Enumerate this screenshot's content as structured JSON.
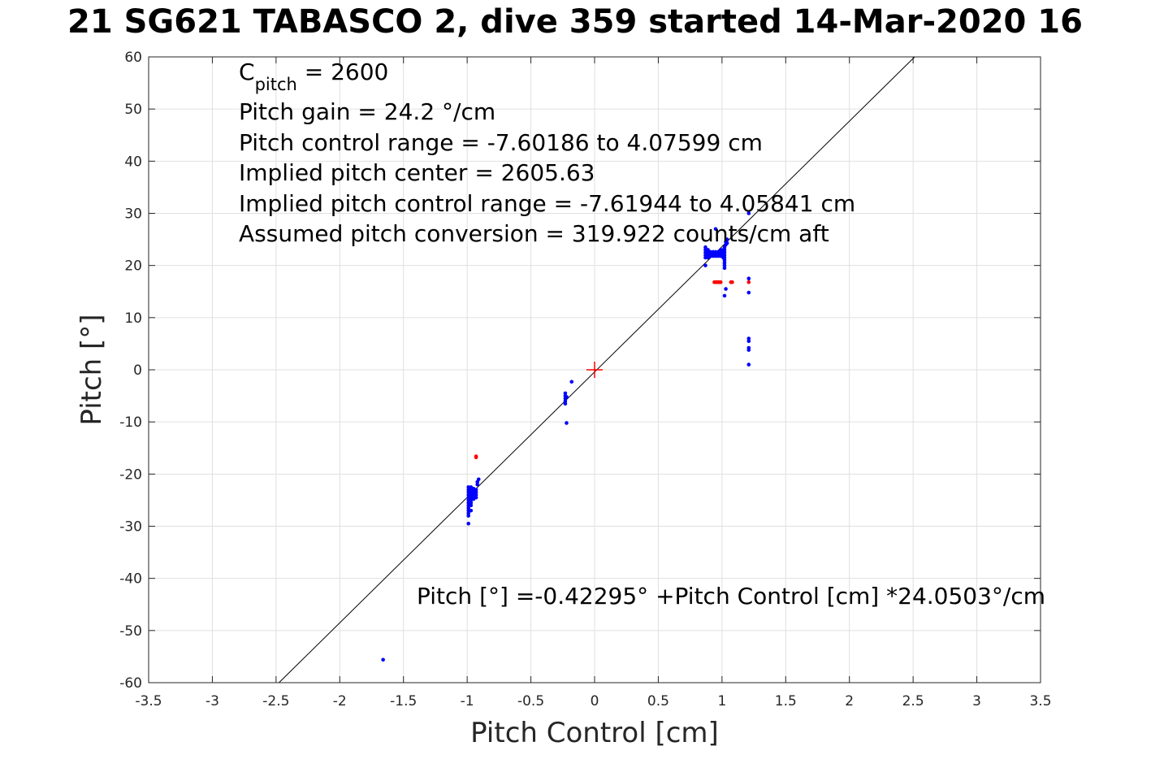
{
  "chart_data": {
    "type": "scatter",
    "title": "21 SG621 TABASCO 2, dive 359 started 14-Mar-2020 16",
    "xlabel": "Pitch Control [cm]",
    "ylabel": "Pitch [°]",
    "xlim": [
      -3.5,
      3.5
    ],
    "ylim": [
      -60,
      60
    ],
    "x_ticks": [
      "-3.5",
      "-3",
      "-2.5",
      "-2",
      "-1.5",
      "-1",
      "-0.5",
      "0",
      "0.5",
      "1",
      "1.5",
      "2",
      "2.5",
      "3",
      "3.5"
    ],
    "y_ticks": [
      "-60",
      "-50",
      "-40",
      "-30",
      "-20",
      "-10",
      "0",
      "10",
      "20",
      "30",
      "40",
      "50",
      "60"
    ],
    "grid": true,
    "annotations": {
      "c_pitch_main": "C",
      "c_pitch_sub": "pitch",
      "c_pitch_value": " = 2600",
      "lines": [
        "Pitch gain = 24.2 °/cm",
        "Pitch control range = -7.60186 to 4.07599 cm",
        "Implied pitch center = 2605.63",
        "Implied pitch control range = -7.61944 to 4.05841 cm",
        "Assumed pitch conversion = 319.922 counts/cm aft"
      ],
      "fit_equation": "Pitch [°] =-0.42295° +Pitch Control [cm] *24.0503°/cm"
    },
    "fit_line": {
      "intercept": -0.42295,
      "slope": 24.0503,
      "color": "#000000"
    },
    "center_marker": {
      "x": 0,
      "y": 0,
      "color": "#ff0000"
    },
    "series": [
      {
        "color": "#0000ff",
        "points": [
          [
            -0.99,
            -22.5
          ],
          [
            -0.99,
            -23
          ],
          [
            -0.99,
            -23.5
          ],
          [
            -0.99,
            -24
          ],
          [
            -0.99,
            -24.5
          ],
          [
            -0.99,
            -25
          ],
          [
            -0.99,
            -25.5
          ],
          [
            -0.99,
            -26
          ],
          [
            -0.99,
            -26.5
          ],
          [
            -0.99,
            -27
          ],
          [
            -0.99,
            -27.5
          ],
          [
            -0.99,
            -28
          ],
          [
            -0.99,
            -29.5
          ],
          [
            -0.97,
            -22.5
          ],
          [
            -0.97,
            -23
          ],
          [
            -0.97,
            -23.5
          ],
          [
            -0.97,
            -24
          ],
          [
            -0.97,
            -24.5
          ],
          [
            -0.97,
            -25
          ],
          [
            -0.97,
            -25.5
          ],
          [
            -0.97,
            -26
          ],
          [
            -0.97,
            -27
          ],
          [
            -0.95,
            -22.8
          ],
          [
            -0.95,
            -23.3
          ],
          [
            -0.95,
            -23.8
          ],
          [
            -0.95,
            -24.3
          ],
          [
            -0.95,
            -24.8
          ],
          [
            -0.93,
            -23
          ],
          [
            -0.93,
            -23.5
          ],
          [
            -0.93,
            -24
          ],
          [
            -0.93,
            -24.5
          ],
          [
            -0.92,
            -21.5
          ],
          [
            -0.92,
            -22
          ],
          [
            -0.91,
            -21
          ],
          [
            -0.23,
            -4.5
          ],
          [
            -0.23,
            -5
          ],
          [
            -0.23,
            -5.5
          ],
          [
            -0.23,
            -6
          ],
          [
            -0.23,
            -6.5
          ],
          [
            -0.22,
            -5.2
          ],
          [
            -0.22,
            -10.2
          ],
          [
            -0.18,
            -2.3
          ],
          [
            0.87,
            20
          ],
          [
            0.87,
            21.5
          ],
          [
            0.87,
            22
          ],
          [
            0.87,
            22.5
          ],
          [
            0.87,
            23
          ],
          [
            0.87,
            23.5
          ],
          [
            0.89,
            21.5
          ],
          [
            0.89,
            22
          ],
          [
            0.89,
            22.5
          ],
          [
            0.89,
            23
          ],
          [
            0.91,
            21.8
          ],
          [
            0.91,
            22.2
          ],
          [
            0.91,
            22.6
          ],
          [
            0.93,
            21.8
          ],
          [
            0.93,
            22.2
          ],
          [
            0.93,
            22.6
          ],
          [
            0.95,
            21.8
          ],
          [
            0.95,
            22.2
          ],
          [
            0.95,
            22.6
          ],
          [
            0.97,
            21.8
          ],
          [
            0.97,
            22.2
          ],
          [
            0.97,
            22.6
          ],
          [
            0.99,
            21.8
          ],
          [
            0.99,
            22.2
          ],
          [
            0.99,
            22.6
          ],
          [
            0.99,
            23
          ],
          [
            1.01,
            21.5
          ],
          [
            1.01,
            22
          ],
          [
            1.01,
            22.5
          ],
          [
            1.01,
            23
          ],
          [
            1.02,
            19.5
          ],
          [
            1.02,
            20
          ],
          [
            1.02,
            20.5
          ],
          [
            1.02,
            21
          ],
          [
            1.02,
            21.5
          ],
          [
            1.02,
            22
          ],
          [
            1.02,
            22.5
          ],
          [
            1.02,
            23
          ],
          [
            1.02,
            23.5
          ],
          [
            1.03,
            24
          ],
          [
            1.03,
            24.5
          ],
          [
            1.04,
            25
          ],
          [
            1.04,
            24.3
          ],
          [
            0.95,
            27
          ],
          [
            1.03,
            15.5
          ],
          [
            1.02,
            14.2
          ],
          [
            1.21,
            30
          ],
          [
            1.21,
            17.5
          ],
          [
            1.21,
            14.8
          ],
          [
            1.21,
            6
          ],
          [
            1.21,
            5.5
          ],
          [
            1.21,
            4.2
          ],
          [
            1.21,
            3.8
          ],
          [
            1.21,
            1
          ],
          [
            -1.66,
            -55.6
          ]
        ]
      },
      {
        "color": "#ff0000",
        "points": [
          [
            -0.93,
            -16.8
          ],
          [
            -0.93,
            -16.6
          ],
          [
            0.94,
            16.8
          ],
          [
            0.95,
            16.8
          ],
          [
            0.96,
            16.8
          ],
          [
            0.97,
            16.8
          ],
          [
            0.98,
            16.8
          ],
          [
            0.99,
            16.8
          ],
          [
            1.07,
            16.8
          ],
          [
            1.08,
            16.8
          ],
          [
            1.21,
            16.8
          ]
        ]
      }
    ]
  }
}
